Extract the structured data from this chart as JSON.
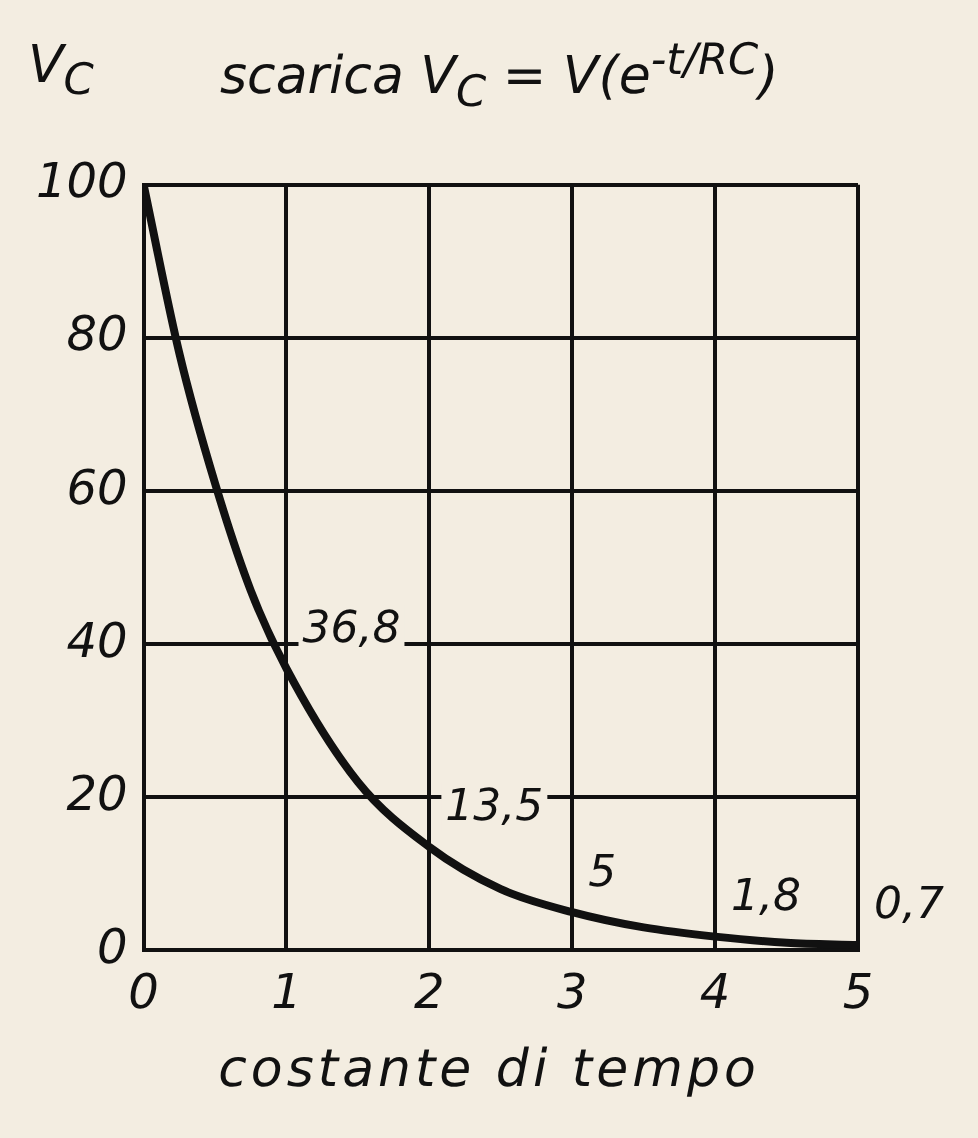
{
  "chart_data": {
    "type": "line",
    "title": "scarica  V$_{C}$ = V(e$^{-t/RC}$)",
    "ylabel": "V$_{C}$",
    "xlabel": "costante di tempo",
    "x": [
      0,
      0.25,
      0.5,
      0.75,
      1,
      1.5,
      2,
      2.5,
      3,
      3.5,
      4,
      4.5,
      5
    ],
    "series": [
      {
        "color": "#111111",
        "values": [
          100,
          78,
          61,
          47,
          36.8,
          22,
          13.5,
          8,
          5,
          3,
          1.8,
          1,
          0.7
        ],
        "value_labels": [
          null,
          null,
          null,
          null,
          "36,8",
          null,
          "13,5",
          null,
          "5",
          null,
          "1,8",
          null,
          "0,7"
        ]
      }
    ],
    "xlim": [
      0,
      5
    ],
    "xticks": [
      0,
      1,
      2,
      3,
      4,
      5
    ],
    "ylim": [
      0,
      100
    ],
    "yticks": [
      0,
      20,
      40,
      60,
      80,
      100
    ],
    "grid": true,
    "legend": false,
    "line_style": "solid"
  }
}
